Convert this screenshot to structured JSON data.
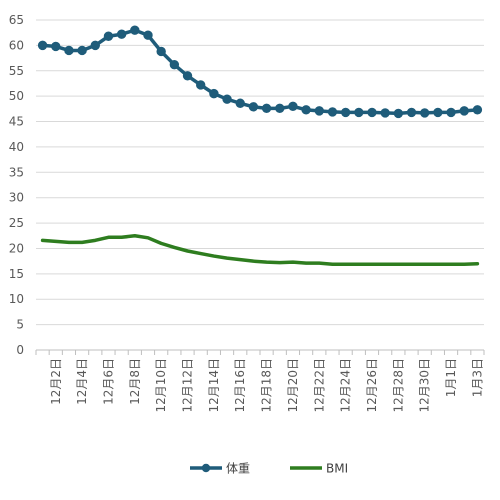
{
  "chart_data": {
    "type": "line",
    "title": "",
    "xlabel": "",
    "ylabel": "",
    "ylim": [
      0,
      65
    ],
    "yticks": [
      0,
      5,
      10,
      15,
      20,
      25,
      30,
      35,
      40,
      45,
      50,
      55,
      60,
      65
    ],
    "grid": "horizontal",
    "legend_position": "bottom",
    "x": [
      "12月1日",
      "12月2日",
      "12月3日",
      "12月4日",
      "12月5日",
      "12月6日",
      "12月7日",
      "12月8日",
      "12月9日",
      "12月10日",
      "12月11日",
      "12月12日",
      "12月13日",
      "12月14日",
      "12月15日",
      "12月16日",
      "12月17日",
      "12月18日",
      "12月19日",
      "12月20日",
      "12月21日",
      "12月22日",
      "12月23日",
      "12月24日",
      "12月25日",
      "12月26日",
      "12月27日",
      "12月28日",
      "12月29日",
      "12月30日",
      "12月31日",
      "1月1日",
      "1月2日",
      "1月3日"
    ],
    "tick_labels": [
      "12月2日",
      "12月4日",
      "12月6日",
      "12月8日",
      "12月10日",
      "12月12日",
      "12月14日",
      "12月16日",
      "12月18日",
      "12月20日",
      "12月22日",
      "12月24日",
      "12月26日",
      "12月28日",
      "12月30日",
      "1月1日",
      "1月3日"
    ],
    "series": [
      {
        "name": "体重",
        "color": "#1F5C7A",
        "markers": true,
        "values": [
          60.0,
          59.8,
          59.0,
          59.0,
          60.0,
          61.8,
          62.2,
          63.0,
          62.0,
          58.8,
          56.2,
          54.0,
          52.2,
          50.5,
          49.4,
          48.6,
          47.9,
          47.6,
          47.6,
          48.0,
          47.3,
          47.1,
          46.9,
          46.8,
          46.8,
          46.8,
          46.7,
          46.6,
          46.8,
          46.7,
          46.8,
          46.8,
          47.1,
          47.3
        ]
      },
      {
        "name": "BMI",
        "color": "#2E7D1F",
        "markers": false,
        "values": [
          21.6,
          21.4,
          21.2,
          21.2,
          21.6,
          22.2,
          22.2,
          22.5,
          22.1,
          21.0,
          20.2,
          19.5,
          19.0,
          18.5,
          18.1,
          17.8,
          17.5,
          17.3,
          17.2,
          17.3,
          17.1,
          17.1,
          16.9,
          16.9,
          16.9,
          16.9,
          16.9,
          16.9,
          16.9,
          16.9,
          16.9,
          16.9,
          16.9,
          17.0
        ]
      }
    ]
  }
}
